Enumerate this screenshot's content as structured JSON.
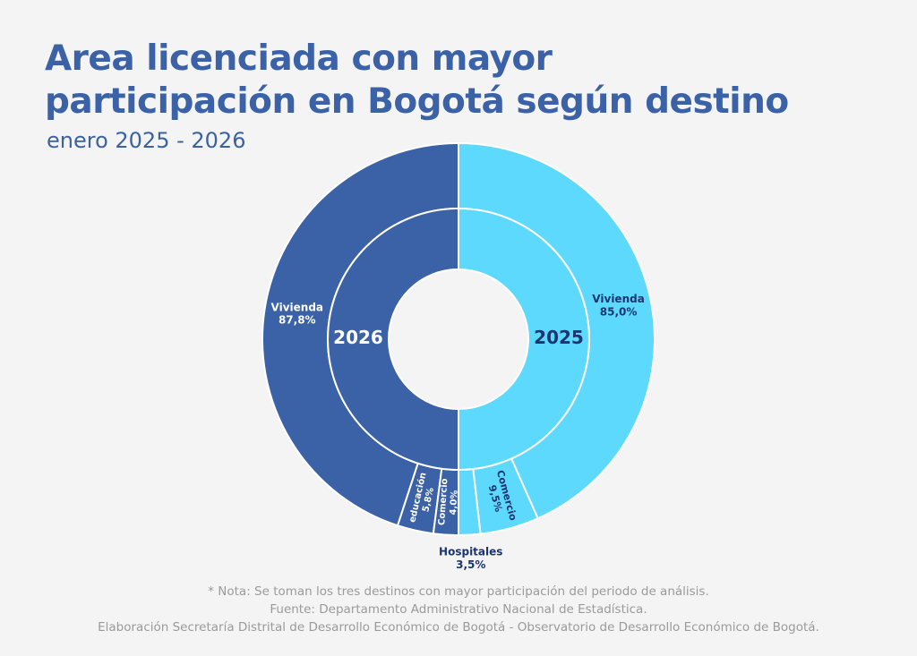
{
  "header": {
    "title_line1": "Area licenciada con mayor",
    "title_line2": "participación en Bogotá según destino",
    "subtitle": "enero 2025 - 2026"
  },
  "chart_data": {
    "type": "sunburst-donut",
    "colors": {
      "year_2026": "#3b62a6",
      "year_2025": "#5dd9fd",
      "label_dark": "#1b3570",
      "label_light": "#ffffff"
    },
    "inner_ring": [
      {
        "name": "2026",
        "value": 50,
        "color": "#3b62a6"
      },
      {
        "name": "2025",
        "value": 50,
        "color": "#5dd9fd"
      }
    ],
    "outer_ring": [
      {
        "year": "2025",
        "label": "Vivienda",
        "value_text": "85,0%",
        "value": 85.0
      },
      {
        "year": "2025",
        "label": "Comercio",
        "value_text": "9,5%",
        "value": 9.5
      },
      {
        "year": "2025",
        "label": "Hospitales",
        "value_text": "3,5%",
        "value": 3.5
      },
      {
        "year": "2026",
        "label": "Vivienda",
        "value_text": "87,8%",
        "value": 87.8
      },
      {
        "year": "2026",
        "label": "educación",
        "value_text": "5,8%",
        "value": 5.8
      },
      {
        "year": "2026",
        "label": "Comercio",
        "value_text": "4,0%",
        "value": 4.0
      }
    ]
  },
  "notes": {
    "note": "* Nota: Se toman los tres destinos con mayor participación del periodo de análisis.",
    "source": "Fuente: Departamento Administrativo Nacional de Estadística.",
    "elaboration": "Elaboración Secretaría Distrital de Desarrollo Económico de Bogotá - Observatorio de Desarrollo Económico de Bogotá."
  }
}
